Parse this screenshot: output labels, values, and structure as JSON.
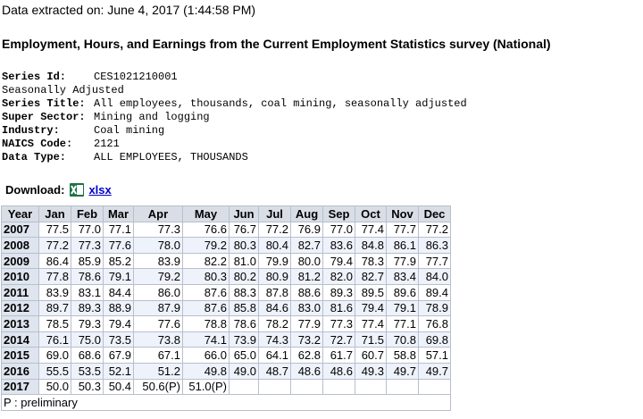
{
  "header": {
    "extracted": "Data extracted on: June 4, 2017 (1:44:58 PM)",
    "title": "Employment, Hours, and Earnings from the Current Employment Statistics survey (National)"
  },
  "series": {
    "id_label": "Series Id:",
    "id": "CES1021210001",
    "adjusted": "Seasonally Adjusted",
    "fields": [
      {
        "label": "Series Title:",
        "value": "All employees, thousands, coal mining, seasonally adjusted"
      },
      {
        "label": "Super Sector:",
        "value": "Mining and logging"
      },
      {
        "label": "Industry:",
        "value": "Coal mining"
      },
      {
        "label": "NAICS Code:",
        "value": "2121"
      },
      {
        "label": "Data Type:",
        "value": "ALL EMPLOYEES, THOUSANDS"
      }
    ]
  },
  "download": {
    "label": "Download:",
    "link": "xlsx"
  },
  "table": {
    "columns": [
      "Year",
      "Jan",
      "Feb",
      "Mar",
      "Apr",
      "May",
      "Jun",
      "Jul",
      "Aug",
      "Sep",
      "Oct",
      "Nov",
      "Dec"
    ],
    "rows": [
      [
        "2007",
        "77.5",
        "77.0",
        "77.1",
        "77.3",
        "76.6",
        "76.7",
        "77.2",
        "76.9",
        "77.0",
        "77.4",
        "77.7",
        "77.2"
      ],
      [
        "2008",
        "77.2",
        "77.3",
        "77.6",
        "78.0",
        "79.2",
        "80.3",
        "80.4",
        "82.7",
        "83.6",
        "84.8",
        "86.1",
        "86.3"
      ],
      [
        "2009",
        "86.4",
        "85.9",
        "85.2",
        "83.9",
        "82.2",
        "81.0",
        "79.9",
        "80.0",
        "79.4",
        "78.3",
        "77.9",
        "77.7"
      ],
      [
        "2010",
        "77.8",
        "78.6",
        "79.1",
        "79.2",
        "80.3",
        "80.2",
        "80.9",
        "81.2",
        "82.0",
        "82.7",
        "83.4",
        "84.0"
      ],
      [
        "2011",
        "83.9",
        "83.1",
        "84.4",
        "86.0",
        "87.6",
        "88.3",
        "87.8",
        "88.6",
        "89.3",
        "89.5",
        "89.6",
        "89.4"
      ],
      [
        "2012",
        "89.7",
        "89.3",
        "88.9",
        "87.9",
        "87.6",
        "85.8",
        "84.6",
        "83.0",
        "81.6",
        "79.4",
        "79.1",
        "78.9"
      ],
      [
        "2013",
        "78.5",
        "79.3",
        "79.4",
        "77.6",
        "78.8",
        "78.6",
        "78.2",
        "77.9",
        "77.3",
        "77.4",
        "77.1",
        "76.8"
      ],
      [
        "2014",
        "76.1",
        "75.0",
        "73.5",
        "73.8",
        "74.1",
        "73.9",
        "74.3",
        "73.2",
        "72.7",
        "71.5",
        "70.8",
        "69.8"
      ],
      [
        "2015",
        "69.0",
        "68.6",
        "67.9",
        "67.1",
        "66.0",
        "65.0",
        "64.1",
        "62.8",
        "61.7",
        "60.7",
        "58.8",
        "57.1"
      ],
      [
        "2016",
        "55.5",
        "53.5",
        "52.1",
        "51.2",
        "49.8",
        "49.0",
        "48.7",
        "48.6",
        "48.6",
        "49.3",
        "49.7",
        "49.7"
      ],
      [
        "2017",
        "50.0",
        "50.3",
        "50.4",
        "50.6(P)",
        "51.0(P)"
      ]
    ],
    "footnote": "P : preliminary"
  }
}
